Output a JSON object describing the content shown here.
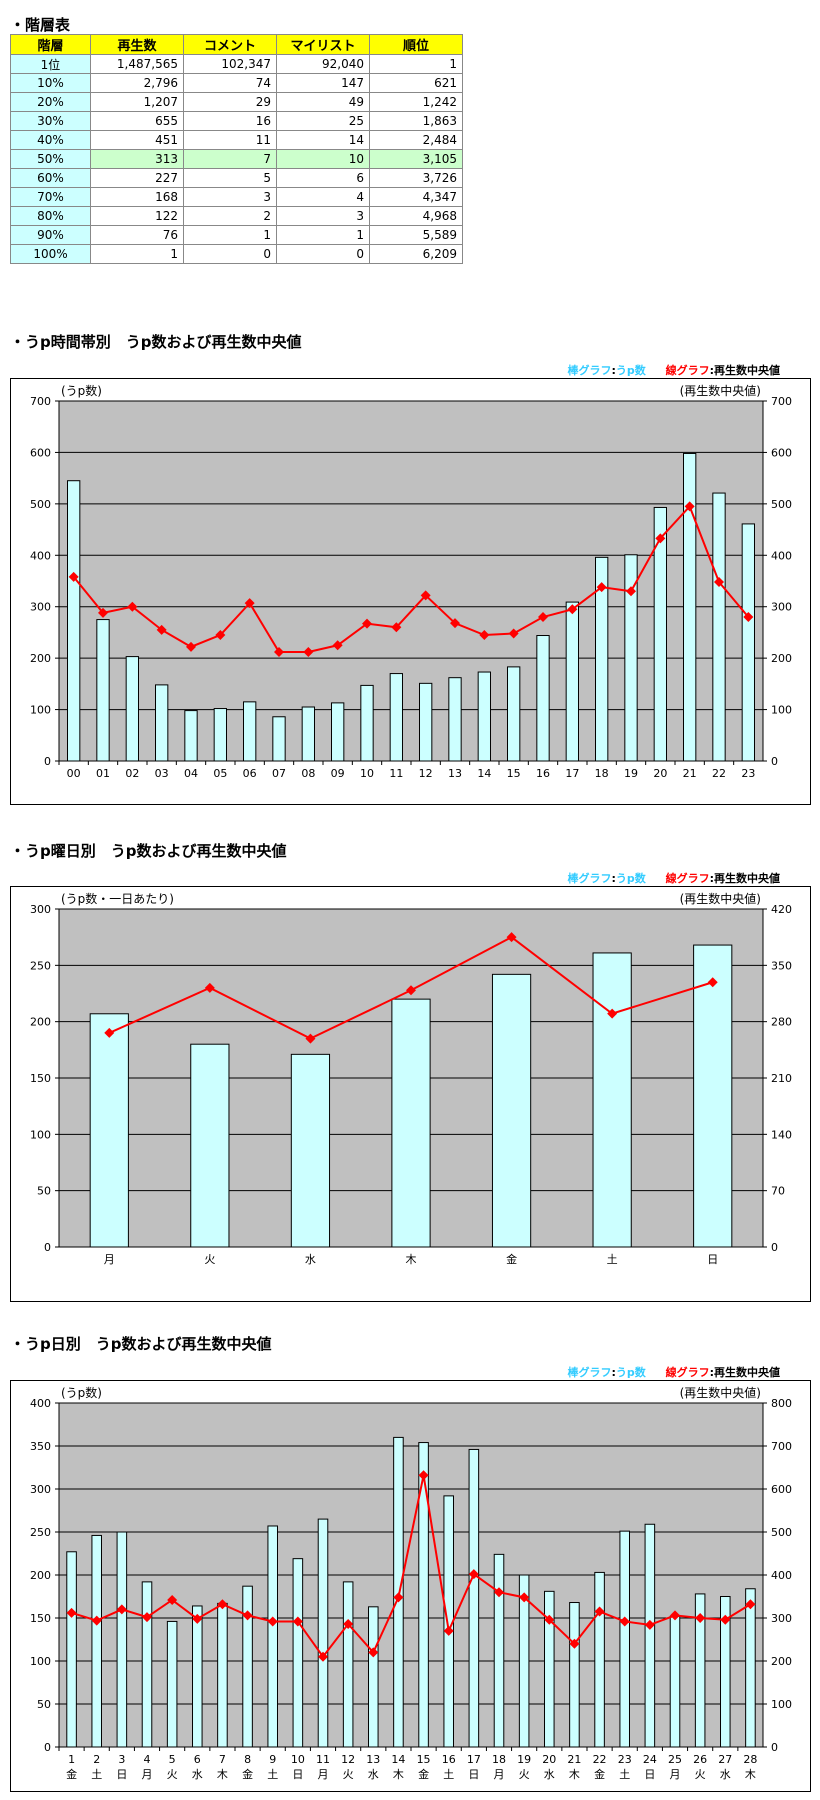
{
  "table": {
    "title": "・階層表",
    "headers": [
      "階層",
      "再生数",
      "コメント",
      "マイリスト",
      "順位"
    ],
    "rows": [
      [
        "1位",
        "1,487,565",
        "102,347",
        "92,040",
        "1"
      ],
      [
        "10%",
        "2,796",
        "74",
        "147",
        "621"
      ],
      [
        "20%",
        "1,207",
        "29",
        "49",
        "1,242"
      ],
      [
        "30%",
        "655",
        "16",
        "25",
        "1,863"
      ],
      [
        "40%",
        "451",
        "11",
        "14",
        "2,484"
      ],
      [
        "50%",
        "313",
        "7",
        "10",
        "3,105"
      ],
      [
        "60%",
        "227",
        "5",
        "6",
        "3,726"
      ],
      [
        "70%",
        "168",
        "3",
        "4",
        "4,347"
      ],
      [
        "80%",
        "122",
        "2",
        "3",
        "4,968"
      ],
      [
        "90%",
        "76",
        "1",
        "1",
        "5,589"
      ],
      [
        "100%",
        "1",
        "0",
        "0",
        "6,209"
      ]
    ],
    "highlight_row": 5,
    "colors": {
      "header": "#ffff00",
      "label": "#ccffff",
      "highlight": "#ccffcc"
    }
  },
  "legend": {
    "bar_label": "棒グラフ",
    "bar_value": "うp数",
    "line_label": "線グラフ",
    "line_value": "再生数中央値",
    "sep": ":"
  },
  "colors": {
    "plot_bg": "#c0c0c0",
    "bar_fill": "#ccffff",
    "bar_stroke": "#000000",
    "line": "#ff0000"
  },
  "chart_data": [
    {
      "type": "bar",
      "section_title": "・うp時間帯別　うp数および再生数中央値",
      "left_unit": "(うp数)",
      "right_unit": "(再生数中央値)",
      "categories": [
        "00",
        "01",
        "02",
        "03",
        "04",
        "05",
        "06",
        "07",
        "08",
        "09",
        "10",
        "11",
        "12",
        "13",
        "14",
        "15",
        "16",
        "17",
        "18",
        "19",
        "20",
        "21",
        "22",
        "23"
      ],
      "bars": [
        545,
        275,
        203,
        148,
        98,
        102,
        115,
        86,
        105,
        113,
        147,
        170,
        151,
        162,
        173,
        183,
        244,
        309,
        396,
        401,
        493,
        598,
        521,
        461
      ],
      "line": [
        358,
        288,
        300,
        255,
        222,
        245,
        307,
        212,
        212,
        225,
        267,
        260,
        322,
        268,
        245,
        248,
        280,
        295,
        338,
        330,
        433,
        495,
        348,
        280
      ],
      "ylim_left": [
        0,
        700
      ],
      "ylim_right": [
        0,
        700
      ],
      "yticks_left": [
        0,
        100,
        200,
        300,
        400,
        500,
        600,
        700
      ],
      "yticks_right": [
        0,
        100,
        200,
        300,
        400,
        500,
        600,
        700
      ],
      "grid": true
    },
    {
      "type": "bar",
      "section_title": "・うp曜日別　うp数および再生数中央値",
      "left_unit": "(うp数・一日あたり)",
      "right_unit": "(再生数中央値)",
      "categories": [
        "月",
        "火",
        "水",
        "木",
        "金",
        "土",
        "日"
      ],
      "bars": [
        207,
        180,
        171,
        220,
        242,
        261,
        268
      ],
      "line": [
        266,
        322,
        259,
        319,
        385,
        290,
        329
      ],
      "ylim_left": [
        0,
        300
      ],
      "ylim_right": [
        0,
        420
      ],
      "yticks_left": [
        0,
        50,
        100,
        150,
        200,
        250,
        300
      ],
      "yticks_right": [
        0,
        70,
        140,
        210,
        280,
        350,
        420
      ],
      "grid": true
    },
    {
      "type": "bar",
      "section_title": "・うp日別　うp数および再生数中央値",
      "left_unit": "(うp数)",
      "right_unit": "(再生数中央値)",
      "categories": [
        "1",
        "2",
        "3",
        "4",
        "5",
        "6",
        "7",
        "8",
        "9",
        "10",
        "11",
        "12",
        "13",
        "14",
        "15",
        "16",
        "17",
        "18",
        "19",
        "20",
        "21",
        "22",
        "23",
        "24",
        "25",
        "26",
        "27",
        "28"
      ],
      "weekdays": [
        "金",
        "土",
        "日",
        "月",
        "火",
        "水",
        "木",
        "金",
        "土",
        "日",
        "月",
        "火",
        "水",
        "木",
        "金",
        "土",
        "日",
        "月",
        "火",
        "水",
        "木",
        "金",
        "土",
        "日",
        "月",
        "火",
        "水",
        "木"
      ],
      "bars": [
        227,
        246,
        250,
        192,
        146,
        164,
        167,
        187,
        257,
        219,
        265,
        192,
        163,
        360,
        354,
        292,
        346,
        224,
        200,
        181,
        168,
        203,
        251,
        259,
        152,
        178,
        175,
        184
      ],
      "line": [
        312,
        294,
        320,
        302,
        342,
        298,
        332,
        306,
        292,
        292,
        210,
        286,
        220,
        348,
        632,
        270,
        402,
        360,
        348,
        296,
        240,
        315,
        292,
        284,
        306,
        300,
        296,
        332
      ],
      "ylim_left": [
        0,
        400
      ],
      "ylim_right": [
        0,
        800
      ],
      "yticks_left": [
        0,
        50,
        100,
        150,
        200,
        250,
        300,
        350,
        400
      ],
      "yticks_right": [
        0,
        100,
        200,
        300,
        400,
        500,
        600,
        700,
        800
      ],
      "grid": true
    }
  ]
}
